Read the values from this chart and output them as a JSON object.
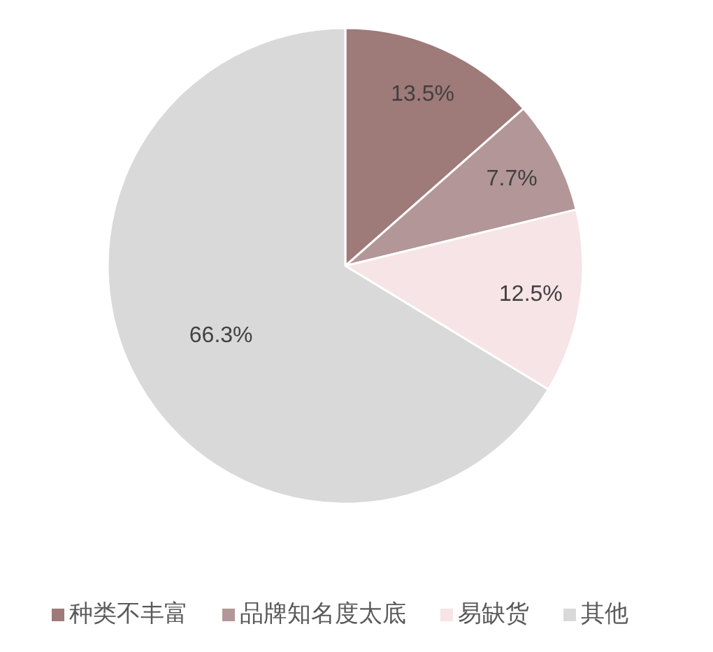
{
  "chart_data": {
    "type": "pie",
    "categories": [
      "种类不丰富",
      "品牌知名度太底",
      "易缺货",
      "其他"
    ],
    "values": [
      13.5,
      7.7,
      12.5,
      66.3
    ],
    "colors": [
      "#9e7a78",
      "#b39697",
      "#f6e4e6",
      "#d9d9d9"
    ],
    "value_labels": [
      "13.5%",
      "7.7%",
      "12.5%",
      "66.3%"
    ],
    "legend": "bottom"
  }
}
